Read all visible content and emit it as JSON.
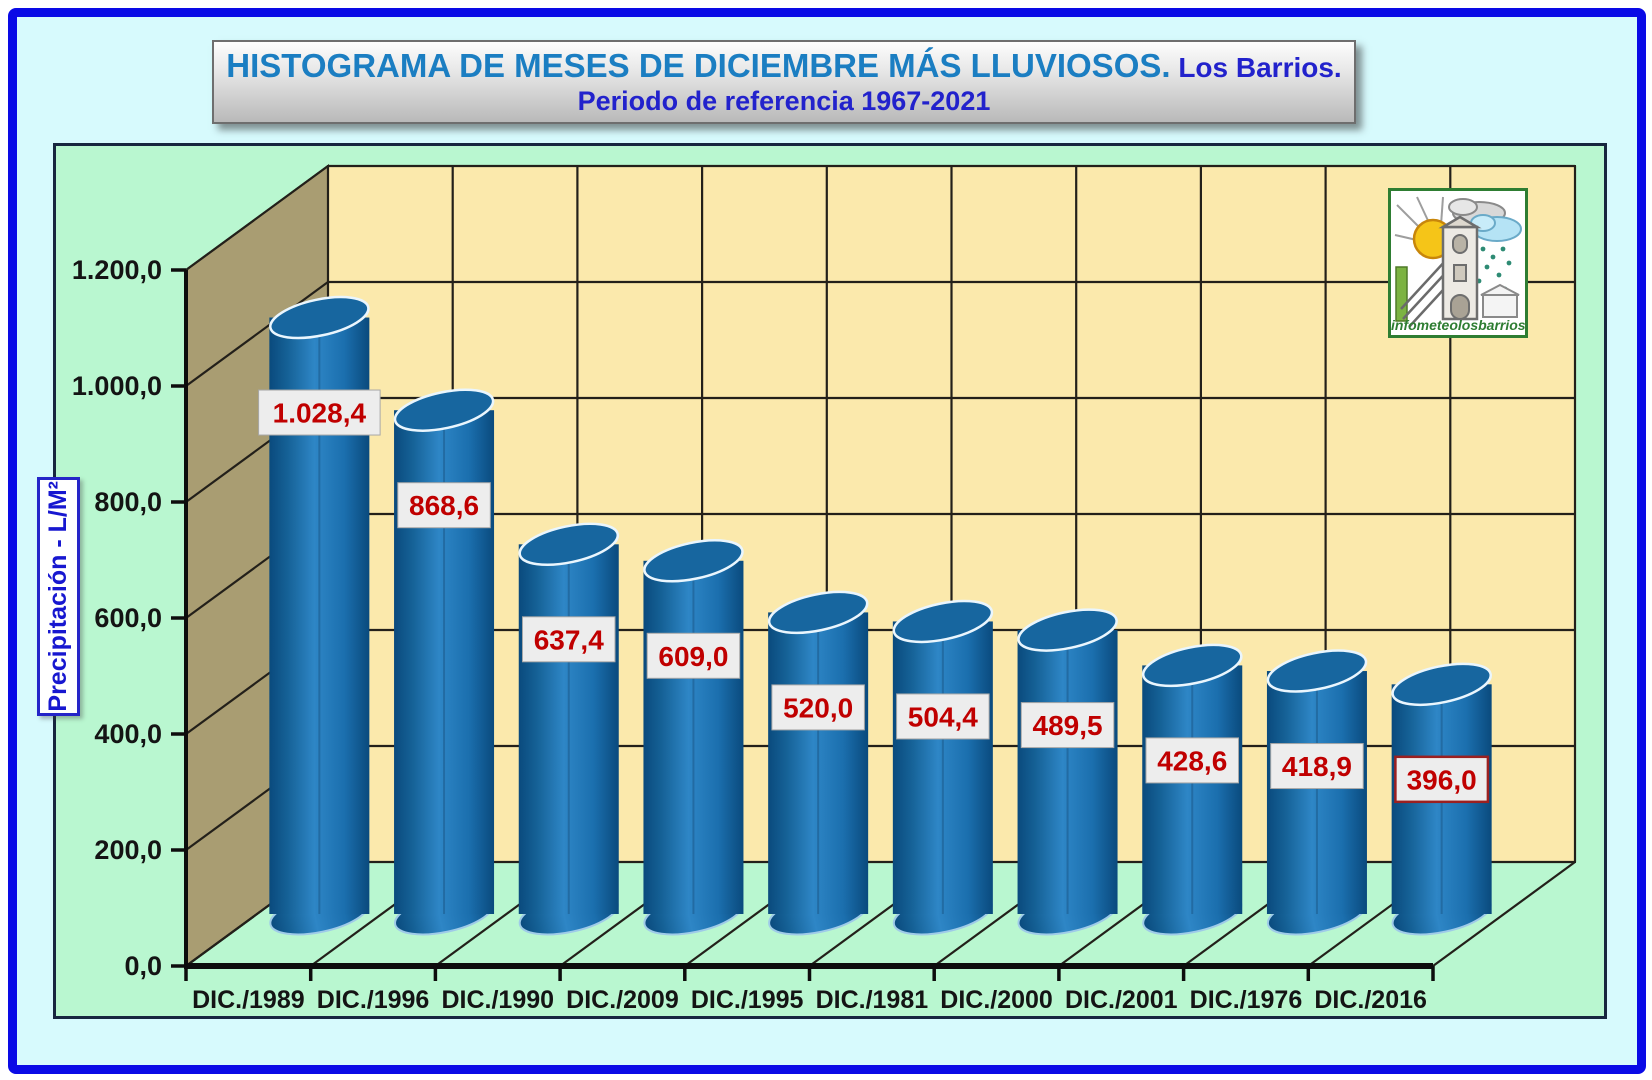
{
  "header": {
    "title_main": "HISTOGRAMA DE MESES DE DICIEMBRE MÁS LLUVIOSOS.",
    "title_suffix": " Los Barrios.",
    "subtitle": "Periodo de referencia 1967-2021"
  },
  "chart_data": {
    "type": "bar",
    "style": "3d-cylinder",
    "categories": [
      "DIC./1989",
      "DIC./1996",
      "DIC./1990",
      "DIC./2009",
      "DIC./1995",
      "DIC./1981",
      "DIC./2000",
      "DIC./2001",
      "DIC./1976",
      "DIC./2016"
    ],
    "values": [
      1028.4,
      868.6,
      637.4,
      609.0,
      520.0,
      504.4,
      489.5,
      428.6,
      418.9,
      396.0
    ],
    "value_labels": [
      "1.028,4",
      "868,6",
      "637,4",
      "609,0",
      "520,0",
      "504,4",
      "489,5",
      "428,6",
      "418,9",
      "396,0"
    ],
    "ylabel": "Precipitación - L/M²",
    "ytick_labels": [
      "0,0",
      "200,0",
      "400,0",
      "600,0",
      "800,0",
      "1.000,0",
      "1.200,0"
    ],
    "ylim": [
      0,
      1200
    ],
    "grid": true,
    "legend": "none",
    "last_label_highlighted": true
  },
  "logo": {
    "caption": "infometeolosbarrios"
  },
  "colors": {
    "outer_border": "#0A0AE6",
    "canvas_bg": "#D7FAFD",
    "panel_bg": "#B9F7D0",
    "wall_back": "#FBE9AC",
    "wall_side": "#A99D72",
    "grid_line": "#23201A",
    "axis_line": "#0D0D0D",
    "bar_dark": "#0A4A7D",
    "bar_mid": "#1B6FAE",
    "bar_light": "#2E86C6",
    "bar_top": "#17669F",
    "bar_rim": "#EAF6FE",
    "value_text": "#C00000",
    "value_bg": "#EDEDED",
    "value_border_last": "#9B2020",
    "title_color_main": "#1B7EC2",
    "title_color_accent": "#2222CC",
    "ylabel_color": "#1717D0"
  }
}
